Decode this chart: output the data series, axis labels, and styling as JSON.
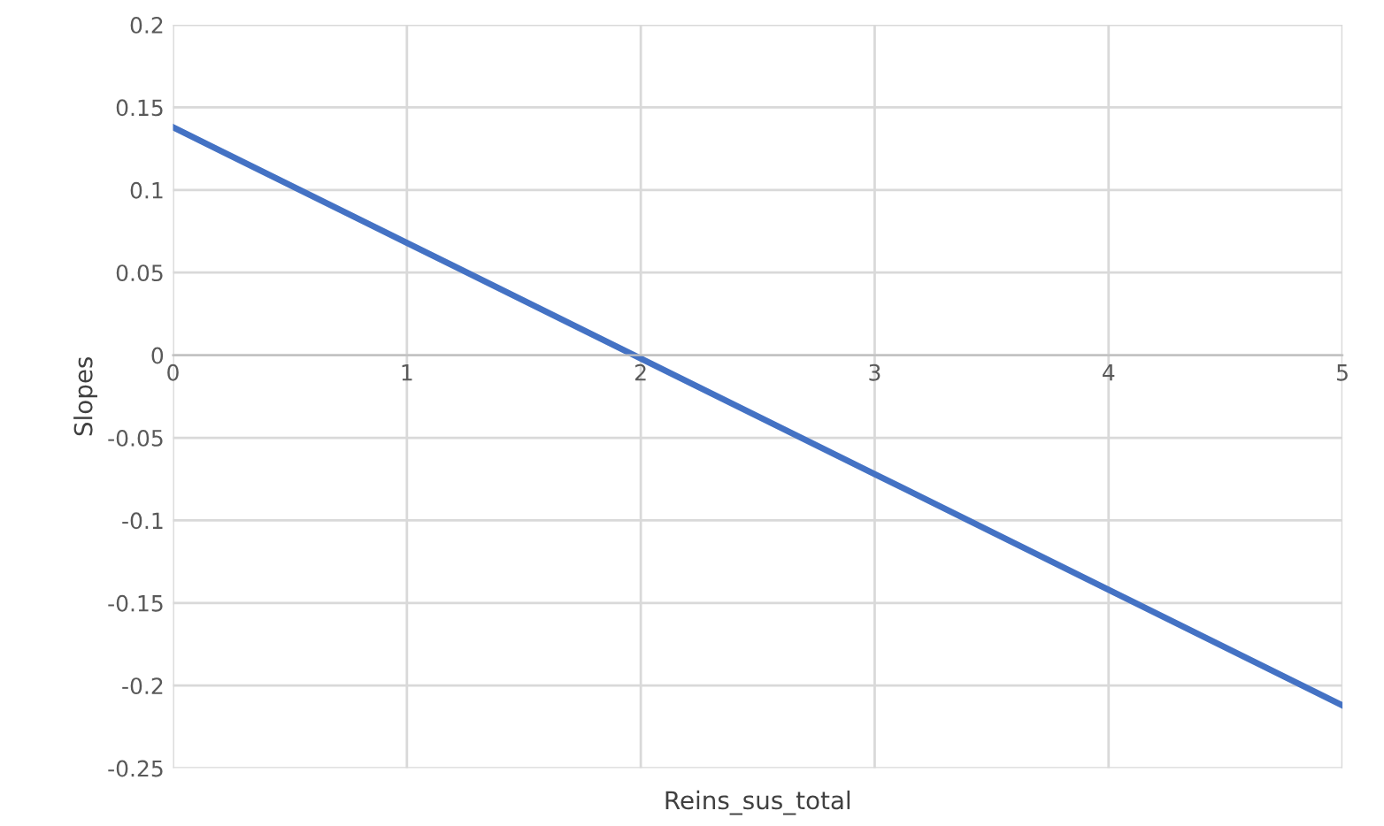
{
  "chart_data": {
    "type": "line",
    "xlabel": "Reins_sus_total",
    "ylabel": "Slopes",
    "x": [
      0,
      1,
      2,
      3,
      4,
      5
    ],
    "series": [
      {
        "color": "#4472c4",
        "values": [
          0.138,
          0.068,
          -0.002,
          -0.072,
          -0.142,
          -0.212
        ]
      }
    ],
    "xlim": [
      0,
      5
    ],
    "xticks": [
      0,
      1,
      2,
      3,
      4,
      5
    ],
    "ylim": [
      -0.25,
      0.2
    ],
    "yticks": [
      -0.25,
      -0.2,
      -0.15,
      -0.1,
      -0.05,
      0,
      0.05,
      0.1,
      0.15,
      0.2
    ],
    "grid": true,
    "legend": false,
    "marker": "none",
    "line_style": "solid"
  }
}
